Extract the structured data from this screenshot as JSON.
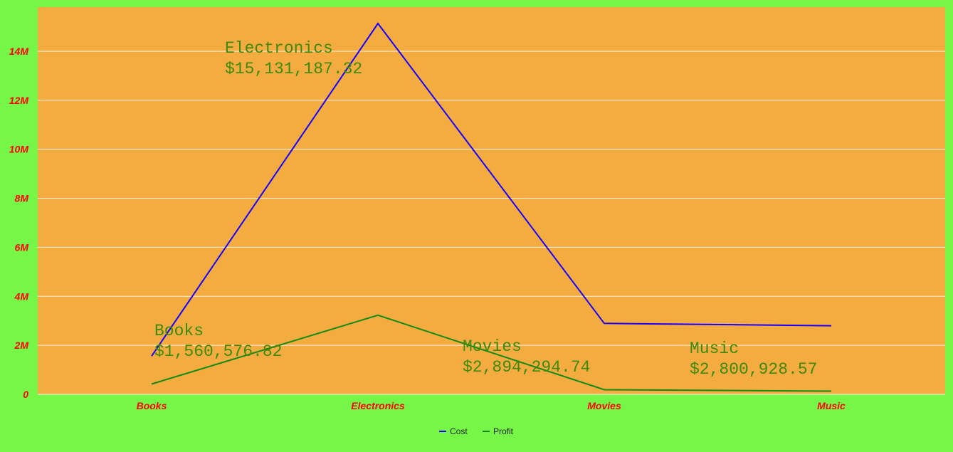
{
  "chart_data": {
    "type": "line",
    "categories": [
      "Books",
      "Electronics",
      "Movies",
      "Music"
    ],
    "series": [
      {
        "name": "Cost",
        "color": "#1500ff",
        "values": [
          1560576.82,
          15131187.32,
          2894294.74,
          2800928.57
        ]
      },
      {
        "name": "Profit",
        "color": "#118a10",
        "values": [
          420000,
          3230000,
          190000,
          130000
        ]
      }
    ],
    "ylim": [
      0,
      15800000
    ],
    "yticks": [
      {
        "value": 0,
        "label": "0"
      },
      {
        "value": 2000000,
        "label": "2M"
      },
      {
        "value": 4000000,
        "label": "4M"
      },
      {
        "value": 6000000,
        "label": "6M"
      },
      {
        "value": 8000000,
        "label": "8M"
      },
      {
        "value": 10000000,
        "label": "10M"
      },
      {
        "value": 12000000,
        "label": "12M"
      },
      {
        "value": 14000000,
        "label": "14M"
      }
    ],
    "annotations": [
      {
        "category": "Books",
        "name": "Books",
        "value": "$1,560,576.82"
      },
      {
        "category": "Electronics",
        "name": "Electronics",
        "value": "$15,131,187.32"
      },
      {
        "category": "Movies",
        "name": "Movies",
        "value": "$2,894,294.74"
      },
      {
        "category": "Music",
        "name": "Music",
        "value": "$2,800,928.57"
      }
    ],
    "grid": true,
    "legend_position": "bottom",
    "colors": {
      "background": "#76f646",
      "plot_background": "#f4ac41",
      "tick_labels": "#ff0000",
      "annotations": "#3c8a0a",
      "gridlines": "#ffffff"
    }
  }
}
